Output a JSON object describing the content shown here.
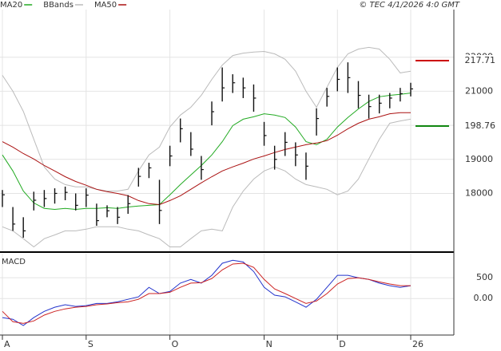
{
  "header": "© TEC 4/1/2026 4:0 GMT",
  "chart_data": [
    {
      "type": "ohlc",
      "categories": [
        "A",
        null,
        null,
        null,
        null,
        null,
        null,
        null,
        "S",
        null,
        null,
        null,
        null,
        null,
        null,
        null,
        "O",
        null,
        null,
        null,
        null,
        null,
        null,
        null,
        null,
        "N",
        null,
        null,
        null,
        null,
        null,
        null,
        "D",
        null,
        null,
        null,
        null,
        null,
        null,
        "26"
      ],
      "high": [
        18100,
        17600,
        17300,
        18050,
        18100,
        18150,
        18200,
        18000,
        18150,
        17700,
        17650,
        17600,
        17950,
        18750,
        18900,
        18400,
        19400,
        20200,
        19800,
        19100,
        20700,
        21700,
        21500,
        21400,
        21200,
        20100,
        19400,
        19800,
        19500,
        19200,
        20500,
        21100,
        21700,
        21850,
        21300,
        20900,
        20900,
        20950,
        21100,
        21250
      ],
      "low": [
        17600,
        16900,
        16700,
        17500,
        17600,
        17700,
        17800,
        17500,
        17600,
        17050,
        17300,
        17100,
        17400,
        18200,
        18450,
        17100,
        18800,
        19500,
        19100,
        18400,
        20000,
        20700,
        20950,
        20800,
        20400,
        19400,
        18700,
        19100,
        18800,
        18400,
        19700,
        20550,
        21000,
        20950,
        20500,
        20200,
        20350,
        20500,
        20700,
        20850
      ],
      "close": [
        17960,
        17100,
        16900,
        17800,
        17850,
        18000,
        18030,
        17650,
        17950,
        17200,
        17490,
        17300,
        17700,
        18500,
        18750,
        17500,
        19100,
        19900,
        19300,
        18700,
        20400,
        21100,
        21250,
        21100,
        20800,
        19700,
        19000,
        19500,
        19130,
        18800,
        20200,
        20850,
        21350,
        21400,
        20880,
        20550,
        20650,
        20800,
        20930,
        21070
      ],
      "bar_color": "#111111",
      "series": [
        {
          "name": "MA20",
          "color": "#22aa22",
          "values": [
            19130,
            18660,
            18070,
            17720,
            17560,
            17530,
            17560,
            17530,
            17560,
            17560,
            17580,
            17560,
            17600,
            17630,
            17650,
            17670,
            17960,
            18260,
            18540,
            18820,
            19130,
            19520,
            19990,
            20180,
            20250,
            20340,
            20300,
            20230,
            19950,
            19520,
            19430,
            19590,
            19950,
            20230,
            20480,
            20700,
            20840,
            20880,
            20910,
            20950
          ]
        },
        {
          "name": "BBands",
          "color": "#bbbbbb",
          "upper": [
            21470,
            21000,
            20410,
            19590,
            18780,
            18420,
            18260,
            18190,
            18190,
            18120,
            18070,
            18070,
            18120,
            18660,
            19130,
            19360,
            19950,
            20300,
            20530,
            20880,
            21350,
            21770,
            22050,
            22120,
            22150,
            22170,
            22100,
            21940,
            21590,
            21000,
            20530,
            21120,
            21700,
            22100,
            22240,
            22290,
            22240,
            21940,
            21540,
            21590
          ],
          "lower": [
            17020,
            16900,
            16670,
            16430,
            16670,
            16780,
            16900,
            16900,
            16950,
            17020,
            17020,
            17020,
            16950,
            16900,
            16780,
            16670,
            16430,
            16430,
            16670,
            16900,
            16950,
            16900,
            17600,
            18070,
            18420,
            18660,
            18780,
            18660,
            18420,
            18260,
            18190,
            18120,
            17960,
            18070,
            18420,
            19010,
            19590,
            20060,
            20130,
            20180
          ]
        },
        {
          "name": "MA50",
          "color": "#aa1111",
          "values": [
            19520,
            19360,
            19170,
            19010,
            18820,
            18660,
            18490,
            18350,
            18240,
            18120,
            18050,
            18000,
            17930,
            17790,
            17700,
            17670,
            17790,
            17930,
            18120,
            18310,
            18490,
            18660,
            18780,
            18890,
            19010,
            19100,
            19200,
            19290,
            19360,
            19430,
            19480,
            19550,
            19710,
            19900,
            20060,
            20180,
            20250,
            20340,
            20370,
            20370
          ]
        }
      ],
      "ylim": [
        16300,
        23400
      ],
      "yticks": [
        18000,
        19000,
        20000,
        21000,
        22000
      ],
      "grid": true,
      "annotations": [
        {
          "label": "217.71",
          "color": "#cc0000"
        },
        {
          "label": "198.76",
          "color": "#118811"
        }
      ]
    },
    {
      "type": "line",
      "title": "MACD",
      "series": [
        {
          "color": "#2233cc",
          "values": [
            -460,
            -500,
            -650,
            -460,
            -310,
            -210,
            -150,
            -190,
            -170,
            -120,
            -120,
            -80,
            -20,
            40,
            270,
            120,
            170,
            370,
            460,
            370,
            560,
            850,
            920,
            880,
            650,
            270,
            80,
            40,
            -80,
            -210,
            -20,
            270,
            560,
            560,
            500,
            460,
            370,
            310,
            270,
            310
          ]
        },
        {
          "color": "#cc2222",
          "values": [
            -310,
            -560,
            -600,
            -540,
            -400,
            -310,
            -250,
            -210,
            -190,
            -150,
            -130,
            -100,
            -80,
            -20,
            120,
            120,
            150,
            270,
            370,
            380,
            480,
            690,
            830,
            850,
            750,
            460,
            230,
            120,
            0,
            -120,
            -60,
            120,
            350,
            480,
            500,
            460,
            400,
            350,
            310,
            310
          ]
        }
      ],
      "ylim": [
        -880,
        1080
      ],
      "yticks": [
        500,
        {
          "value": 0,
          "label": "0.00"
        }
      ],
      "grid": true
    }
  ]
}
